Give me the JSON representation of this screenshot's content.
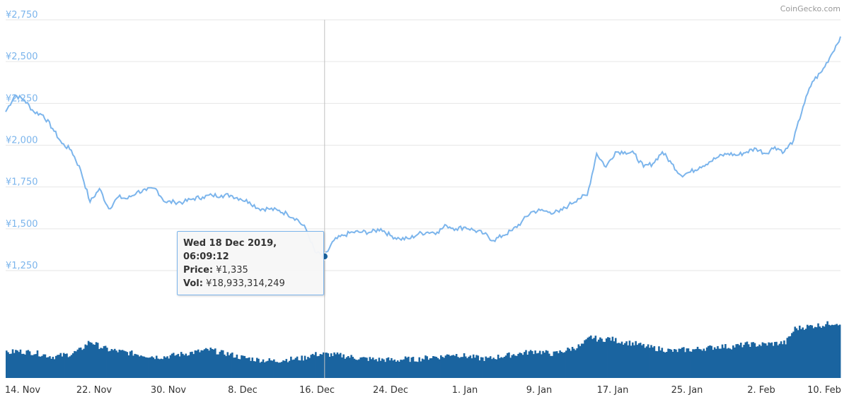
{
  "chart_data": {
    "type": "line",
    "credit": "CoinGecko.com",
    "price_series": {
      "x": [
        "14 Nov",
        "15 Nov",
        "16 Nov",
        "17 Nov",
        "18 Nov",
        "19 Nov",
        "20 Nov",
        "21 Nov",
        "22 Nov",
        "23 Nov",
        "24 Nov",
        "25 Nov",
        "26 Nov",
        "27 Nov",
        "28 Nov",
        "29 Nov",
        "30 Nov",
        "1 Dec",
        "2 Dec",
        "3 Dec",
        "4 Dec",
        "5 Dec",
        "6 Dec",
        "7 Dec",
        "8 Dec",
        "9 Dec",
        "10 Dec",
        "11 Dec",
        "12 Dec",
        "13 Dec",
        "14 Dec",
        "15 Dec",
        "16 Dec",
        "17 Dec",
        "18 Dec",
        "19 Dec",
        "20 Dec",
        "21 Dec",
        "22 Dec",
        "23 Dec",
        "24 Dec",
        "25 Dec",
        "26 Dec",
        "27 Dec",
        "28 Dec",
        "29 Dec",
        "30 Dec",
        "31 Dec",
        "1 Jan",
        "2 Jan",
        "3 Jan",
        "4 Jan",
        "5 Jan",
        "6 Jan",
        "7 Jan",
        "8 Jan",
        "9 Jan",
        "10 Jan",
        "11 Jan",
        "12 Jan",
        "13 Jan",
        "14 Jan",
        "15 Jan",
        "16 Jan",
        "17 Jan",
        "18 Jan",
        "19 Jan",
        "20 Jan",
        "21 Jan",
        "22 Jan",
        "23 Jan",
        "24 Jan",
        "25 Jan",
        "26 Jan",
        "27 Jan",
        "28 Jan",
        "29 Jan",
        "30 Jan",
        "31 Jan",
        "1 Feb",
        "2 Feb",
        "3 Feb",
        "4 Feb",
        "5 Feb",
        "6 Feb",
        "7 Feb",
        "8 Feb",
        "9 Feb",
        "10 Feb",
        "11 Feb"
      ],
      "values": [
        2200,
        2300,
        2270,
        2200,
        2180,
        2100,
        2010,
        1970,
        1850,
        1660,
        1740,
        1620,
        1690,
        1680,
        1720,
        1730,
        1740,
        1660,
        1660,
        1660,
        1680,
        1690,
        1700,
        1700,
        1700,
        1680,
        1660,
        1620,
        1620,
        1610,
        1590,
        1560,
        1500,
        1360,
        1335,
        1430,
        1460,
        1480,
        1480,
        1480,
        1500,
        1460,
        1440,
        1440,
        1470,
        1480,
        1480,
        1520,
        1500,
        1510,
        1490,
        1470,
        1430,
        1460,
        1490,
        1540,
        1600,
        1610,
        1600,
        1600,
        1640,
        1680,
        1700,
        1950,
        1870,
        1960,
        1960,
        1950,
        1870,
        1890,
        1960,
        1890,
        1820,
        1840,
        1870,
        1900,
        1930,
        1950,
        1940,
        1960,
        1980,
        1950,
        1990,
        1960,
        2030,
        2230,
        2380,
        2440,
        2540,
        2650
      ],
      "color": "#7cb5ec"
    },
    "volume_series": {
      "values": [
        35,
        38,
        37,
        36,
        33,
        30,
        32,
        34,
        40,
        52,
        45,
        40,
        38,
        36,
        34,
        32,
        30,
        30,
        32,
        34,
        36,
        38,
        40,
        36,
        34,
        30,
        28,
        26,
        25,
        24,
        26,
        27,
        28,
        33,
        34,
        33,
        32,
        30,
        28,
        27,
        26,
        26,
        25,
        27,
        26,
        28,
        30,
        30,
        34,
        32,
        30,
        28,
        27,
        30,
        32,
        34,
        36,
        38,
        36,
        34,
        38,
        42,
        46,
        58,
        54,
        56,
        52,
        50,
        48,
        44,
        42,
        40,
        38,
        40,
        40,
        42,
        43,
        45,
        44,
        46,
        48,
        47,
        48,
        49,
        50,
        70,
        72,
        74,
        75,
        78
      ],
      "color": "#1a64a0"
    },
    "y_axis": {
      "ticks": [
        "¥1,250",
        "¥1,500",
        "¥1,750",
        "¥2,000",
        "¥2,250",
        "¥2,500",
        "¥2,750"
      ],
      "values": [
        1250,
        1500,
        1750,
        2000,
        2250,
        2500,
        2750
      ],
      "ylim": [
        1100,
        2800
      ]
    },
    "x_axis": {
      "ticks": [
        "14. Nov",
        "22. Nov",
        "30. Nov",
        "8. Dec",
        "16. Dec",
        "24. Dec",
        "1. Jan",
        "9. Jan",
        "17. Jan",
        "25. Jan",
        "2. Feb",
        "10. Feb"
      ]
    },
    "tooltip": {
      "title": "Wed 18 Dec 2019, 06:09:12",
      "price_label": "Price:",
      "price_value": "¥1,335",
      "vol_label": "Vol:",
      "vol_value": "¥18,933,314,249",
      "hover_index": 34
    },
    "grid": true
  }
}
